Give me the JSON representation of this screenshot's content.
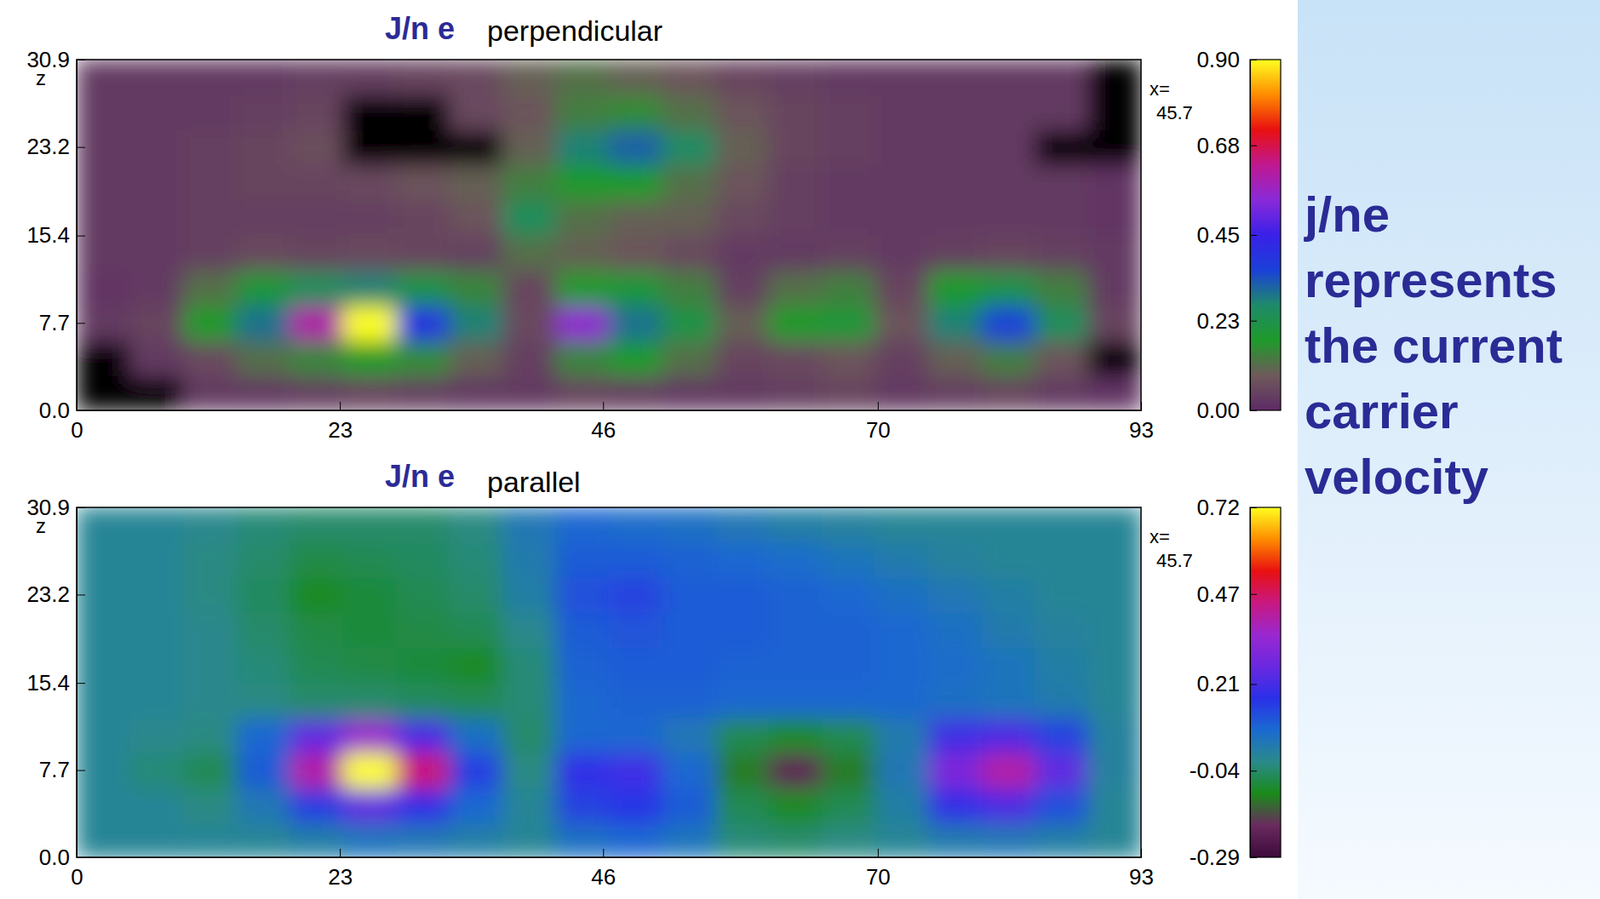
{
  "chart_data": [
    {
      "type": "heatmap",
      "title": "J/n e",
      "subtitle": "perpendicular",
      "ylabel": "z",
      "annotations": [
        "x=",
        "45.7"
      ],
      "xlim": [
        0,
        93
      ],
      "ylim": [
        0,
        30.9
      ],
      "xticks": [
        0,
        23,
        46,
        70,
        93
      ],
      "yticks": [
        {
          "value": 0,
          "label": "0.0"
        },
        7.7,
        15.4,
        23.2,
        30.9
      ],
      "x": [
        2.3,
        7.0,
        11.6,
        16.3,
        20.9,
        25.6,
        30.2,
        34.9,
        39.5,
        44.2,
        48.8,
        53.5,
        58.1,
        62.8,
        67.4,
        72.1,
        76.7,
        81.4,
        86.0,
        90.7
      ],
      "y": [
        1.5,
        4.6,
        7.7,
        10.8,
        13.9,
        17.0,
        20.1,
        23.2,
        26.3,
        29.4
      ],
      "values": [
        [
          null,
          null,
          0.03,
          0.03,
          0.04,
          0.05,
          0.04,
          0.03,
          0.03,
          0.05,
          0.04,
          0.03,
          0.03,
          0.04,
          0.05,
          0.03,
          0.04,
          0.05,
          0.03,
          0.02
        ],
        [
          null,
          0.03,
          0.06,
          0.12,
          0.15,
          0.18,
          0.16,
          0.1,
          0.04,
          0.15,
          0.18,
          0.12,
          0.05,
          0.06,
          0.08,
          0.04,
          0.1,
          0.14,
          0.08,
          null
        ],
        [
          0.03,
          0.05,
          0.18,
          0.3,
          0.6,
          0.9,
          0.4,
          0.28,
          0.06,
          0.55,
          0.3,
          0.22,
          0.1,
          0.18,
          0.2,
          0.08,
          0.28,
          0.36,
          0.25,
          0.05
        ],
        [
          0.02,
          0.03,
          0.12,
          0.2,
          0.25,
          0.28,
          0.22,
          0.15,
          0.05,
          0.18,
          0.2,
          0.14,
          0.04,
          0.12,
          0.14,
          0.05,
          0.18,
          0.22,
          0.14,
          0.03
        ],
        [
          0.03,
          0.03,
          0.04,
          0.06,
          0.05,
          0.06,
          0.05,
          0.04,
          0.12,
          0.1,
          0.08,
          0.06,
          0.03,
          0.03,
          0.04,
          0.03,
          0.04,
          0.05,
          0.04,
          0.03
        ],
        [
          0.03,
          0.03,
          0.04,
          0.04,
          0.04,
          0.04,
          0.05,
          0.08,
          0.25,
          0.12,
          0.1,
          0.1,
          0.06,
          0.04,
          0.03,
          0.03,
          0.03,
          0.03,
          0.03,
          0.02
        ],
        [
          0.03,
          0.03,
          0.04,
          0.05,
          0.05,
          0.06,
          0.08,
          0.1,
          0.14,
          0.18,
          0.18,
          0.12,
          0.08,
          0.04,
          0.03,
          0.03,
          0.03,
          0.03,
          0.03,
          0.02
        ],
        [
          0.03,
          0.03,
          0.04,
          0.05,
          0.07,
          null,
          null,
          null,
          0.1,
          0.28,
          0.32,
          0.26,
          0.1,
          0.05,
          0.04,
          0.03,
          0.03,
          0.03,
          null,
          null
        ],
        [
          0.03,
          0.03,
          0.03,
          0.04,
          0.05,
          null,
          null,
          0.06,
          0.08,
          0.14,
          0.16,
          0.12,
          0.08,
          0.05,
          0.04,
          0.03,
          0.03,
          0.03,
          0.03,
          null
        ],
        [
          0.03,
          0.03,
          0.03,
          0.03,
          0.04,
          0.04,
          0.05,
          0.06,
          0.1,
          0.12,
          0.1,
          0.08,
          0.05,
          0.04,
          0.03,
          0.03,
          0.03,
          0.03,
          0.03,
          null
        ]
      ],
      "colors": [
        "#5e2a66",
        "#6e5a5a",
        "#1f9a2a",
        "#1f8a6a",
        "#1a40d8",
        "#3a20e8",
        "#8a2ad8",
        "#c01890",
        "#e81010",
        "#ff8c00",
        "#ffff20"
      ],
      "colorbar": {
        "range": [
          0,
          0.9
        ],
        "ticks": [
          {
            "value": 0,
            "label": "0.00"
          },
          0.23,
          0.45,
          0.68,
          {
            "value": 0.9,
            "label": "0.90"
          }
        ]
      }
    },
    {
      "type": "heatmap",
      "title": "J/n e",
      "subtitle": "parallel",
      "ylabel": "z",
      "annotations": [
        "x=",
        "45.7"
      ],
      "xlim": [
        0,
        93
      ],
      "ylim": [
        0,
        30.9
      ],
      "xticks": [
        0,
        23,
        46,
        70,
        93
      ],
      "yticks": [
        {
          "value": 0,
          "label": "0.0"
        },
        7.7,
        15.4,
        23.2,
        30.9
      ],
      "x": [
        2.3,
        7.0,
        11.6,
        16.3,
        20.9,
        25.6,
        30.2,
        34.9,
        39.5,
        44.2,
        48.8,
        53.5,
        58.1,
        62.8,
        67.4,
        72.1,
        76.7,
        81.4,
        86.0,
        90.7
      ],
      "y": [
        1.5,
        4.6,
        7.7,
        10.8,
        13.9,
        17.0,
        20.1,
        23.2,
        26.3,
        29.4
      ],
      "values": [
        [
          0.0,
          0.0,
          0.0,
          0.0,
          0.02,
          0.05,
          0.04,
          0.02,
          0.0,
          0.06,
          0.08,
          0.05,
          -0.03,
          -0.04,
          -0.02,
          0.0,
          0.03,
          0.04,
          0.02,
          0.0
        ],
        [
          0.0,
          0.0,
          -0.02,
          0.04,
          0.15,
          0.25,
          0.18,
          0.08,
          0.0,
          0.14,
          0.16,
          0.1,
          -0.06,
          -0.1,
          -0.06,
          0.02,
          0.18,
          0.22,
          0.12,
          0.0
        ],
        [
          0.0,
          -0.03,
          -0.06,
          0.1,
          0.4,
          0.72,
          0.45,
          0.15,
          -0.02,
          0.18,
          0.2,
          0.08,
          -0.12,
          -0.22,
          -0.12,
          0.04,
          0.3,
          0.4,
          0.25,
          0.01
        ],
        [
          0.0,
          -0.01,
          -0.02,
          0.08,
          0.25,
          0.35,
          0.22,
          0.06,
          -0.04,
          0.08,
          0.08,
          0.04,
          -0.06,
          -0.1,
          -0.06,
          0.03,
          0.2,
          0.22,
          0.14,
          0.01
        ],
        [
          0.0,
          0.0,
          -0.01,
          -0.02,
          -0.04,
          -0.04,
          -0.05,
          -0.06,
          -0.03,
          0.08,
          0.09,
          0.09,
          0.08,
          0.08,
          0.08,
          0.08,
          0.06,
          0.05,
          0.03,
          0.0
        ],
        [
          0.0,
          0.0,
          -0.01,
          -0.03,
          -0.06,
          -0.07,
          -0.08,
          -0.1,
          -0.03,
          0.09,
          0.1,
          0.1,
          0.09,
          0.09,
          0.09,
          0.08,
          0.07,
          0.05,
          0.02,
          0.0
        ],
        [
          0.0,
          0.0,
          -0.01,
          -0.04,
          -0.07,
          -0.08,
          -0.07,
          -0.06,
          -0.01,
          0.1,
          0.11,
          0.1,
          0.1,
          0.09,
          0.09,
          0.08,
          0.06,
          0.03,
          0.01,
          0.0
        ],
        [
          0.0,
          0.0,
          -0.02,
          -0.05,
          -0.1,
          -0.08,
          -0.06,
          -0.04,
          0.02,
          0.12,
          0.14,
          0.1,
          0.1,
          0.09,
          0.08,
          0.06,
          0.04,
          0.02,
          0.0,
          0.0
        ],
        [
          0.0,
          0.0,
          -0.02,
          -0.04,
          -0.07,
          -0.06,
          -0.05,
          -0.03,
          0.03,
          0.1,
          0.1,
          0.09,
          0.08,
          0.07,
          0.05,
          0.03,
          0.01,
          0.0,
          0.0,
          0.0
        ],
        [
          0.0,
          0.0,
          -0.01,
          -0.03,
          -0.04,
          -0.04,
          -0.04,
          -0.02,
          0.04,
          0.08,
          0.07,
          0.06,
          0.04,
          0.02,
          0.01,
          0.0,
          0.0,
          0.0,
          0.0,
          0.0
        ]
      ],
      "colors": [
        "#3c0a3c",
        "#6a2a5e",
        "#1a8a1a",
        "#2a8a8a",
        "#1a6ad0",
        "#2a30e8",
        "#6a28e0",
        "#9a28d0",
        "#c81880",
        "#e81010",
        "#ff8c00",
        "#ffff20"
      ],
      "colorbar": {
        "range": [
          -0.29,
          0.72
        ],
        "ticks": [
          -0.29,
          -0.04,
          0.21,
          0.47,
          0.72
        ]
      }
    }
  ],
  "side_note": "j/ne represents the current carrier velocity"
}
